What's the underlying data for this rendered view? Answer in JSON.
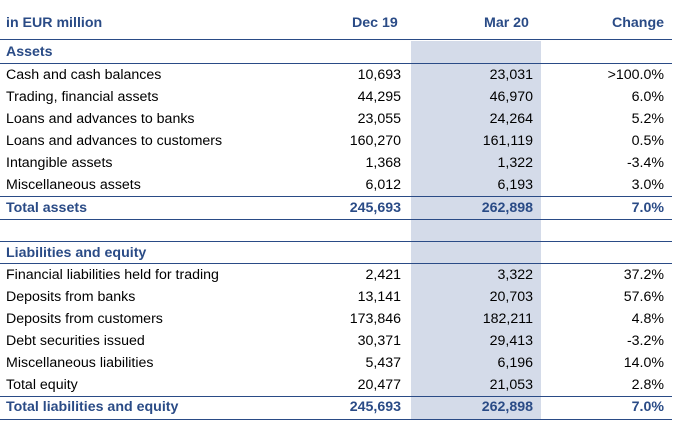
{
  "header": {
    "unit": "in EUR million",
    "col1": "Dec 19",
    "col2": "Mar 20",
    "col3": "Change"
  },
  "assets": {
    "title": "Assets",
    "rows": [
      {
        "label": "Cash and cash balances",
        "dec19": "10,693",
        "mar20": "23,031",
        "change": ">100.0%"
      },
      {
        "label": "Trading, financial assets",
        "dec19": "44,295",
        "mar20": "46,970",
        "change": "6.0%"
      },
      {
        "label": "Loans and advances to banks",
        "dec19": "23,055",
        "mar20": "24,264",
        "change": "5.2%"
      },
      {
        "label": "Loans and advances to customers",
        "dec19": "160,270",
        "mar20": "161,119",
        "change": "0.5%"
      },
      {
        "label": "Intangible assets",
        "dec19": "1,368",
        "mar20": "1,322",
        "change": "-3.4%"
      },
      {
        "label": "Miscellaneous assets",
        "dec19": "6,012",
        "mar20": "6,193",
        "change": "3.0%"
      }
    ],
    "total": {
      "label": "Total assets",
      "dec19": "245,693",
      "mar20": "262,898",
      "change": "7.0%"
    }
  },
  "liabilities": {
    "title": "Liabilities and equity",
    "rows": [
      {
        "label": "Financial liabilities held for trading",
        "dec19": "2,421",
        "mar20": "3,322",
        "change": "37.2%"
      },
      {
        "label": "Deposits from banks",
        "dec19": "13,141",
        "mar20": "20,703",
        "change": "57.6%"
      },
      {
        "label": "Deposits from customers",
        "dec19": "173,846",
        "mar20": "182,211",
        "change": "4.8%"
      },
      {
        "label": "Debt securities issued",
        "dec19": "30,371",
        "mar20": "29,413",
        "change": "-3.2%"
      },
      {
        "label": "Miscellaneous liabilities",
        "dec19": "5,437",
        "mar20": "6,196",
        "change": "14.0%"
      },
      {
        "label": "Total equity",
        "dec19": "20,477",
        "mar20": "21,053",
        "change": "2.8%"
      }
    ],
    "total": {
      "label": "Total liabilities and equity",
      "dec19": "245,693",
      "mar20": "262,898",
      "change": "7.0%"
    }
  },
  "colors": {
    "accent": "#2a4b86",
    "highlight": "#d4dbe9",
    "rule": "#2a4b86"
  }
}
